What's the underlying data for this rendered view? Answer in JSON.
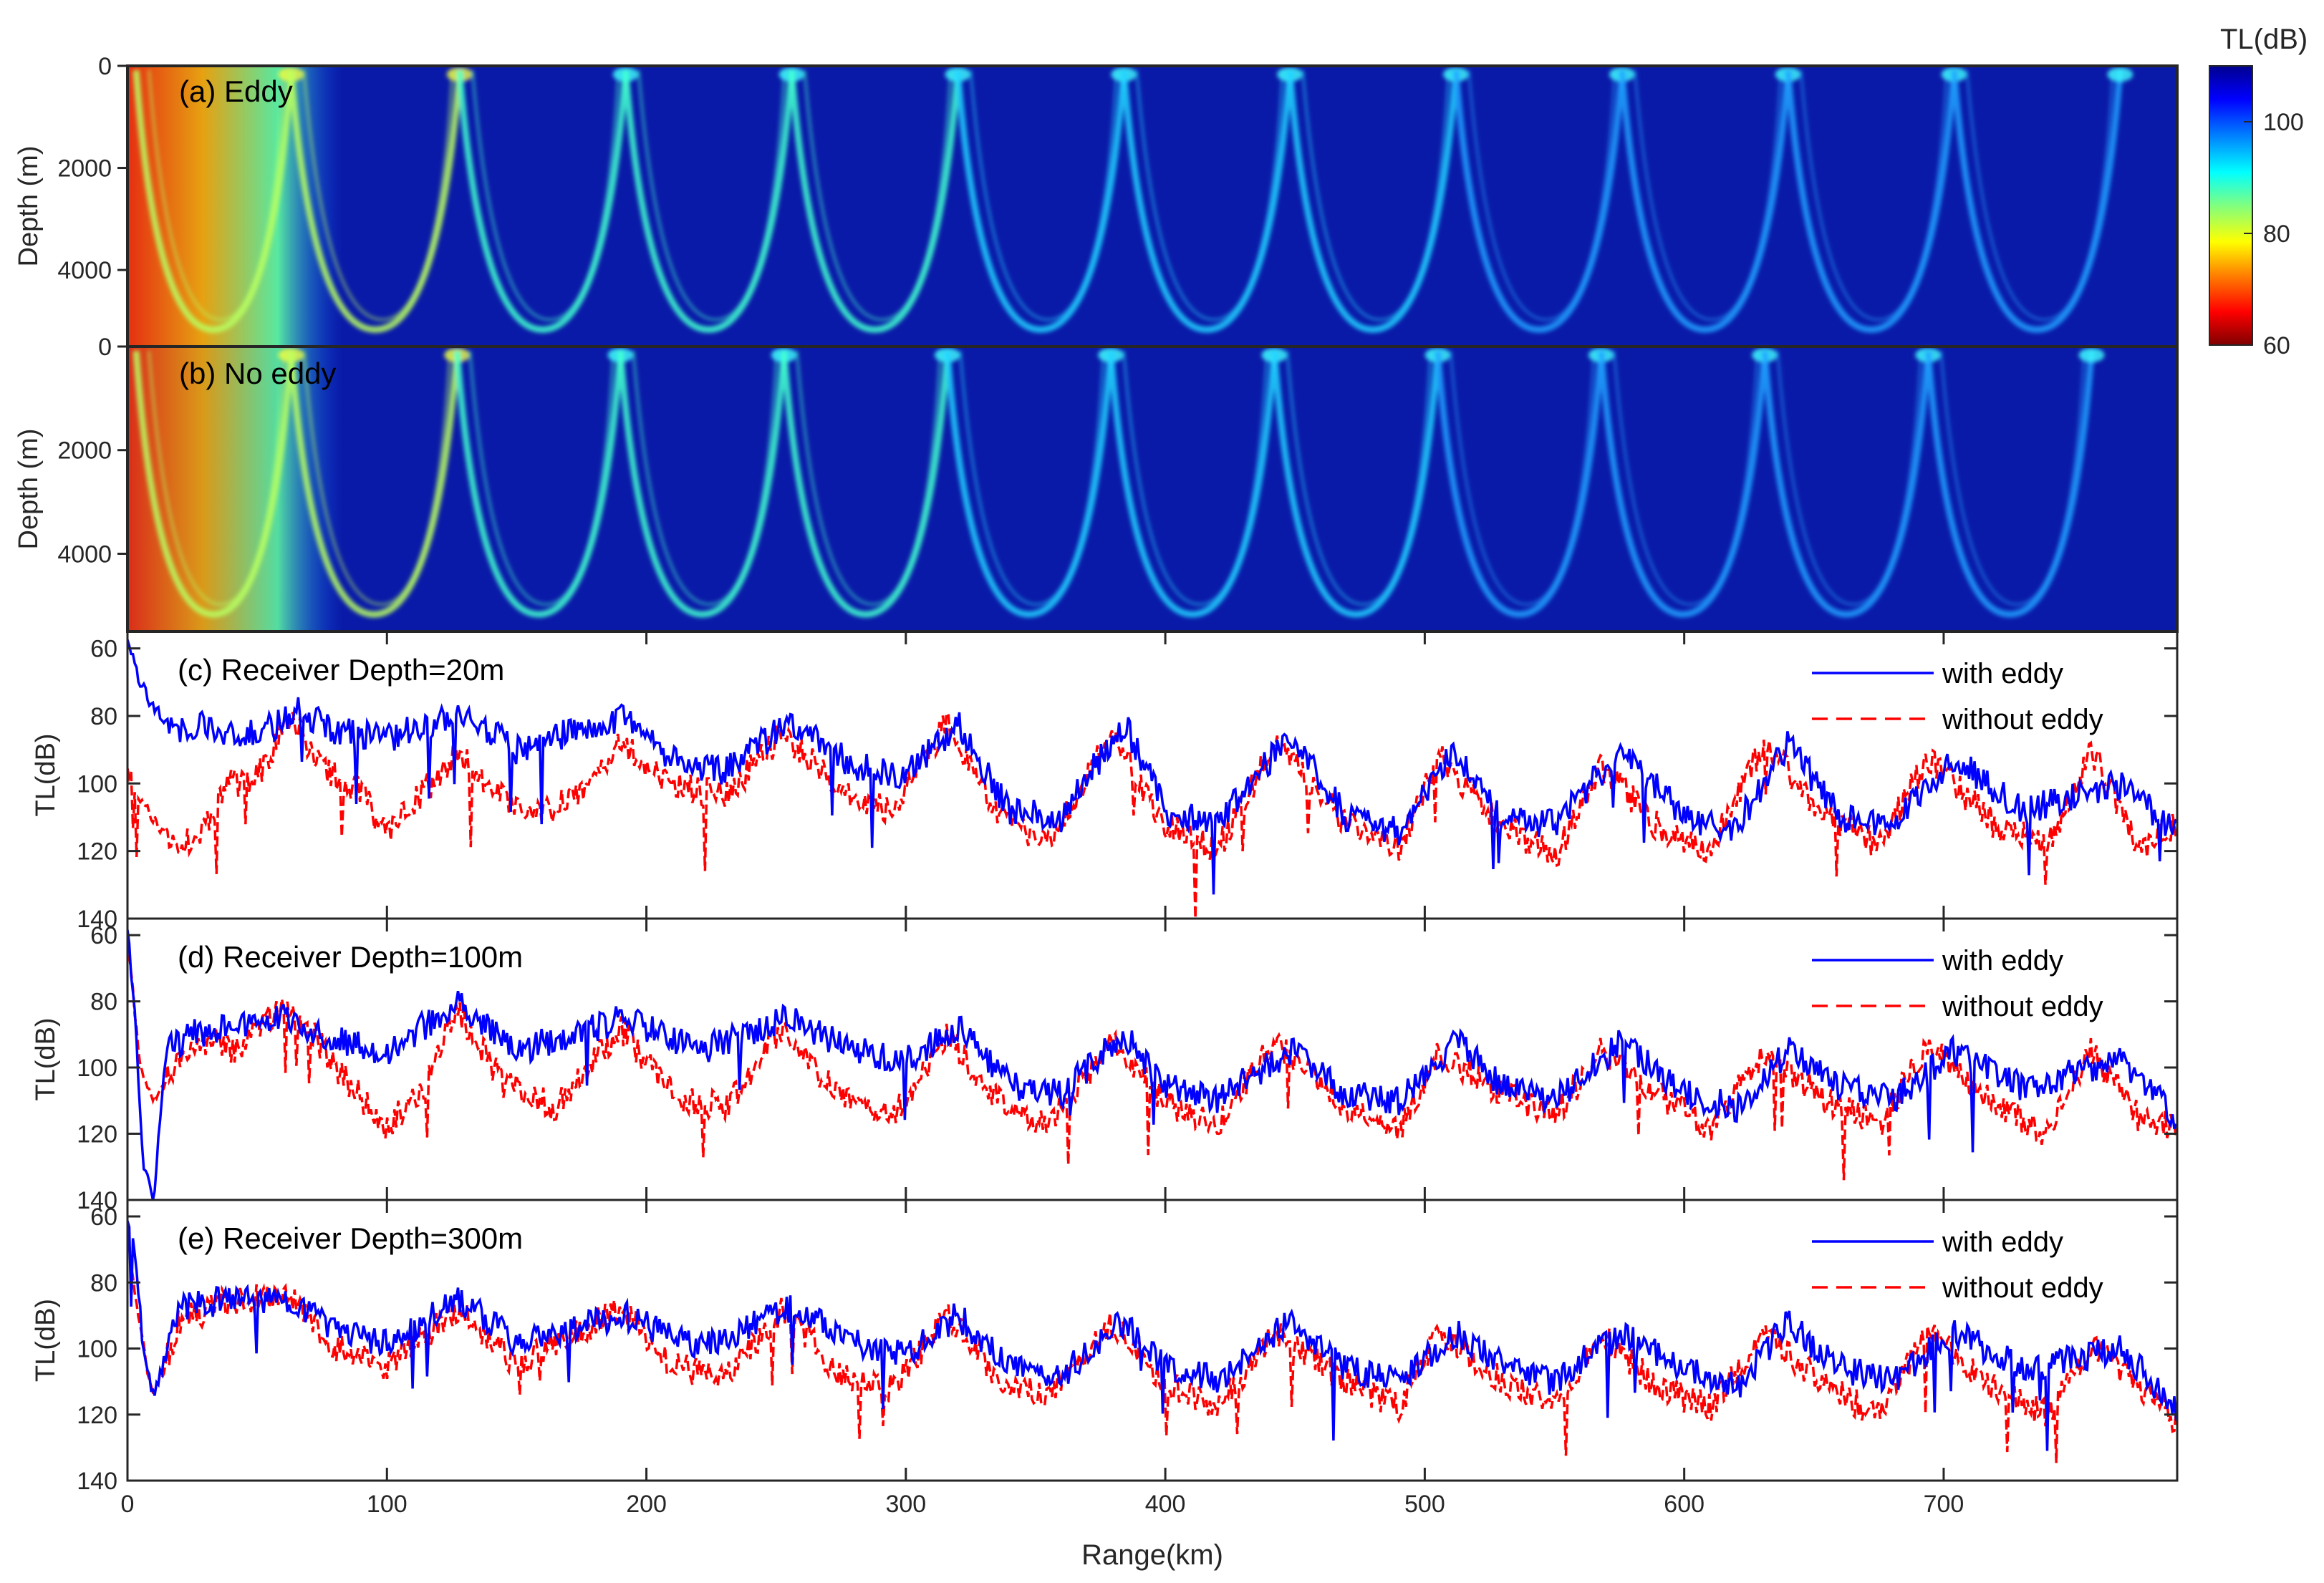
{
  "colorbar": {
    "title": "TL(dB)",
    "ticks": [
      60,
      80,
      100
    ],
    "range": [
      60,
      110
    ],
    "colormap": [
      "#7f0000",
      "#ff0000",
      "#ff8000",
      "#ffff00",
      "#80ff80",
      "#00ffff",
      "#0080ff",
      "#0000ff",
      "#00008f"
    ]
  },
  "x_axis": {
    "label": "Range(km)",
    "ticks": [
      0,
      100,
      200,
      300,
      400,
      500,
      600,
      700
    ],
    "range": [
      0,
      790
    ]
  },
  "chart_data": [
    {
      "type": "heatmap",
      "title": "(a) Eddy",
      "xlabel": "Range(km)",
      "ylabel": "Depth (m)",
      "xlim": [
        0,
        790
      ],
      "ylim": [
        5500,
        0
      ],
      "yticks": [
        0,
        2000,
        4000
      ],
      "zlabel": "TL(dB)",
      "zlim": [
        60,
        110
      ],
      "convergence_zone_ranges_km": [
        63,
        128,
        192,
        256,
        320,
        384,
        448,
        512,
        576,
        640,
        704,
        768
      ]
    },
    {
      "type": "heatmap",
      "title": "(b) No eddy",
      "xlabel": "Range(km)",
      "ylabel": "Depth (m)",
      "xlim": [
        0,
        790
      ],
      "ylim": [
        5500,
        0
      ],
      "yticks": [
        0,
        2000,
        4000
      ],
      "zlabel": "TL(dB)",
      "zlim": [
        60,
        110
      ],
      "convergence_zone_ranges_km": [
        63,
        127,
        190,
        253,
        316,
        379,
        442,
        505,
        568,
        631,
        694,
        757
      ]
    },
    {
      "type": "line",
      "title": "(c) Receiver Depth=20m",
      "xlabel": "Range(km)",
      "ylabel": "TL(dB)",
      "xlim": [
        0,
        790
      ],
      "ylim": [
        140,
        55
      ],
      "yticks": [
        60,
        80,
        100,
        120,
        140
      ],
      "legend": "top-right",
      "series": [
        {
          "name": "with eddy",
          "color": "#0000ff",
          "style": "solid",
          "x": [
            0,
            5,
            10,
            20,
            30,
            40,
            50,
            60,
            63,
            80,
            100,
            128,
            150,
            192,
            210,
            230,
            256,
            280,
            300,
            320,
            340,
            360,
            384,
            400,
            420,
            448,
            470,
            490,
            512,
            530,
            550,
            576,
            600,
            620,
            640,
            660,
            680,
            704,
            730,
            768,
            790
          ],
          "y": [
            58,
            70,
            78,
            85,
            83,
            85,
            84,
            82,
            78,
            84,
            87,
            79,
            90,
            80,
            93,
            96,
            82,
            95,
            98,
            82,
            108,
            110,
            82,
            108,
            112,
            86,
            110,
            114,
            90,
            110,
            112,
            90,
            110,
            113,
            88,
            110,
            112,
            92,
            108,
            100,
            115
          ]
        },
        {
          "name": "without eddy",
          "color": "#ff0000",
          "style": "dashed",
          "x": [
            0,
            5,
            10,
            20,
            30,
            40,
            50,
            63,
            75,
            90,
            100,
            115,
            127,
            145,
            160,
            175,
            190,
            210,
            230,
            253,
            275,
            295,
            316,
            335,
            355,
            379,
            400,
            420,
            442,
            470,
            490,
            505,
            530,
            550,
            568,
            590,
            610,
            631,
            655,
            675,
            694,
            720,
            740,
            757,
            775,
            790
          ],
          "y": [
            95,
            105,
            110,
            120,
            112,
            100,
            98,
            80,
            95,
            103,
            115,
            102,
            90,
            105,
            108,
            104,
            88,
            100,
            104,
            85,
            103,
            108,
            82,
            110,
            118,
            85,
            112,
            120,
            88,
            112,
            120,
            92,
            112,
            122,
            95,
            113,
            120,
            88,
            110,
            118,
            92,
            113,
            118,
            90,
            120,
            112
          ]
        }
      ]
    },
    {
      "type": "line",
      "title": "(d) Receiver Depth=100m",
      "xlabel": "Range(km)",
      "ylabel": "TL(dB)",
      "xlim": [
        0,
        790
      ],
      "ylim": [
        140,
        55
      ],
      "yticks": [
        60,
        80,
        100,
        120,
        140
      ],
      "legend": "top-right",
      "series": [
        {
          "name": "with eddy",
          "color": "#0000ff",
          "style": "solid",
          "x": [
            0,
            3,
            6,
            10,
            15,
            25,
            40,
            60,
            80,
            100,
            128,
            150,
            192,
            220,
            256,
            280,
            300,
            320,
            340,
            360,
            384,
            400,
            420,
            448,
            470,
            490,
            512,
            530,
            550,
            576,
            600,
            620,
            640,
            660,
            680,
            704,
            730,
            768,
            790
          ],
          "y": [
            58,
            85,
            130,
            140,
            95,
            90,
            88,
            85,
            92,
            95,
            80,
            95,
            85,
            95,
            85,
            95,
            98,
            88,
            105,
            108,
            90,
            106,
            110,
            95,
            108,
            110,
            92,
            106,
            110,
            92,
            108,
            112,
            95,
            106,
            110,
            95,
            106,
            98,
            115
          ]
        },
        {
          "name": "without eddy",
          "color": "#ff0000",
          "style": "dashed",
          "x": [
            0,
            5,
            10,
            25,
            40,
            63,
            80,
            100,
            115,
            127,
            145,
            165,
            190,
            210,
            230,
            253,
            275,
            295,
            316,
            335,
            355,
            379,
            400,
            420,
            442,
            470,
            490,
            505,
            530,
            550,
            568,
            590,
            610,
            631,
            655,
            675,
            694,
            720,
            740,
            757,
            775,
            790
          ],
          "y": [
            60,
            100,
            110,
            92,
            95,
            80,
            100,
            118,
            105,
            82,
            105,
            112,
            88,
            108,
            112,
            88,
            110,
            115,
            90,
            110,
            118,
            92,
            110,
            118,
            92,
            112,
            120,
            95,
            108,
            115,
            95,
            108,
            118,
            95,
            110,
            118,
            92,
            112,
            120,
            95,
            115,
            118
          ]
        }
      ]
    },
    {
      "type": "line",
      "title": "(e) Receiver Depth=300m",
      "xlabel": "Range(km)",
      "ylabel": "TL(dB)",
      "xlim": [
        0,
        790
      ],
      "ylim": [
        140,
        55
      ],
      "yticks": [
        60,
        80,
        100,
        120,
        140
      ],
      "legend": "top-right",
      "series": [
        {
          "name": "with eddy",
          "color": "#0000ff",
          "style": "solid",
          "x": [
            0,
            3,
            6,
            10,
            20,
            40,
            63,
            80,
            100,
            128,
            150,
            192,
            220,
            256,
            280,
            300,
            320,
            340,
            360,
            384,
            400,
            420,
            448,
            470,
            490,
            512,
            530,
            550,
            576,
            600,
            620,
            640,
            660,
            680,
            704,
            730,
            768,
            790
          ],
          "y": [
            60,
            70,
            100,
            115,
            88,
            85,
            85,
            95,
            98,
            85,
            98,
            90,
            100,
            88,
            98,
            102,
            90,
            105,
            108,
            92,
            105,
            110,
            92,
            106,
            110,
            95,
            105,
            110,
            95,
            106,
            112,
            92,
            106,
            110,
            95,
            106,
            100,
            118
          ]
        },
        {
          "name": "without eddy",
          "color": "#ff0000",
          "style": "dashed",
          "x": [
            0,
            5,
            10,
            20,
            40,
            63,
            80,
            100,
            127,
            150,
            190,
            210,
            230,
            253,
            275,
            295,
            316,
            335,
            355,
            379,
            400,
            420,
            442,
            470,
            490,
            505,
            530,
            550,
            568,
            590,
            610,
            631,
            655,
            675,
            694,
            720,
            740,
            757,
            775,
            790
          ],
          "y": [
            65,
            95,
            115,
            92,
            85,
            85,
            100,
            105,
            88,
            105,
            88,
            105,
            110,
            88,
            108,
            112,
            90,
            108,
            115,
            92,
            110,
            118,
            95,
            110,
            118,
            95,
            110,
            118,
            95,
            112,
            118,
            95,
            112,
            120,
            95,
            112,
            120,
            98,
            112,
            122
          ]
        }
      ]
    }
  ]
}
